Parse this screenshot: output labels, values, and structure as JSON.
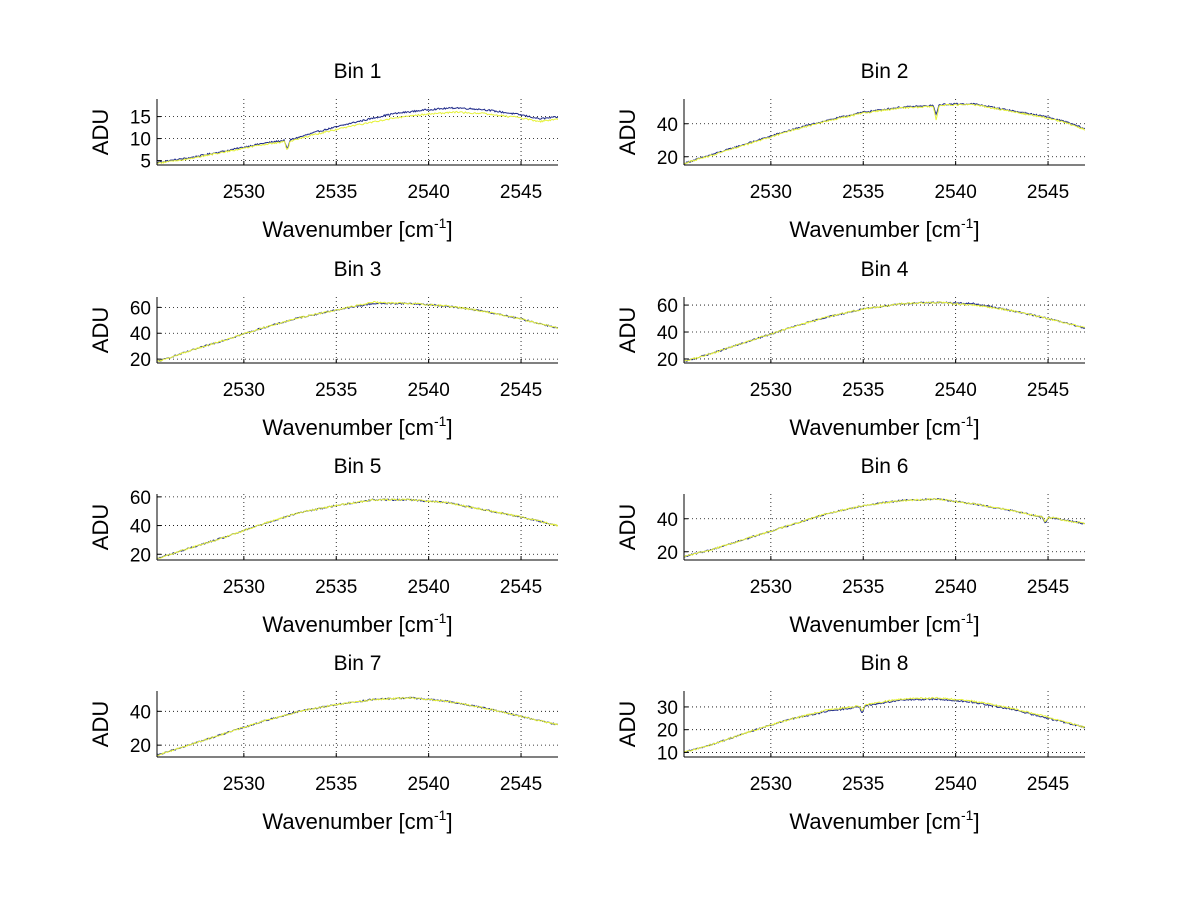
{
  "chart_data": [
    {
      "type": "line",
      "title": "Bin 1",
      "xlabel": "Wavenumber [cm",
      "xlabel_sup": "-1",
      "xlabel_end": "]",
      "ylabel": "ADU",
      "xlim": [
        2525.3,
        2547.0
      ],
      "ylim": [
        4,
        19
      ],
      "xticks": [
        2530,
        2535,
        2540,
        2545
      ],
      "yticks": [
        5,
        10,
        15
      ],
      "grid": true,
      "series": [
        {
          "color": "#1f2a8a",
          "points": [
            [
              2525.3,
              4.6
            ],
            [
              2527,
              5.6
            ],
            [
              2529,
              7.2
            ],
            [
              2531,
              8.9
            ],
            [
              2532.2,
              9.6
            ],
            [
              2532.35,
              7.4
            ],
            [
              2532.5,
              9.7
            ],
            [
              2534,
              11.6
            ],
            [
              2536,
              13.7
            ],
            [
              2538,
              15.6
            ],
            [
              2540,
              16.6
            ],
            [
              2541.5,
              17.0
            ],
            [
              2543,
              16.6
            ],
            [
              2545,
              15.4
            ],
            [
              2546,
              14.5
            ],
            [
              2547,
              14.9
            ]
          ]
        },
        {
          "color": "#e6f23c",
          "points": [
            [
              2525.3,
              4.4
            ],
            [
              2527,
              5.4
            ],
            [
              2529,
              7.0
            ],
            [
              2531,
              8.6
            ],
            [
              2532.2,
              9.3
            ],
            [
              2532.35,
              7.2
            ],
            [
              2532.5,
              9.4
            ],
            [
              2534,
              11.1
            ],
            [
              2536,
              13.0
            ],
            [
              2538,
              14.6
            ],
            [
              2540,
              15.6
            ],
            [
              2541.5,
              16.0
            ],
            [
              2543,
              15.7
            ],
            [
              2545,
              14.7
            ],
            [
              2546,
              13.9
            ],
            [
              2547,
              14.4
            ]
          ]
        }
      ]
    },
    {
      "type": "line",
      "title": "Bin 2",
      "xlabel": "Wavenumber [cm",
      "xlabel_sup": "-1",
      "xlabel_end": "]",
      "ylabel": "ADU",
      "xlim": [
        2525.3,
        2547.0
      ],
      "ylim": [
        15,
        55
      ],
      "xticks": [
        2530,
        2535,
        2540,
        2545
      ],
      "yticks": [
        20,
        40
      ],
      "grid": true,
      "series": [
        {
          "color": "#1f2a8a",
          "points": [
            [
              2525.3,
              16
            ],
            [
              2527,
              22
            ],
            [
              2529,
              29
            ],
            [
              2531,
              36
            ],
            [
              2533,
              42
            ],
            [
              2535,
              47
            ],
            [
              2537,
              50
            ],
            [
              2538.8,
              51
            ],
            [
              2538.95,
              45
            ],
            [
              2539.1,
              51.5
            ],
            [
              2540,
              52
            ],
            [
              2541,
              52
            ],
            [
              2543,
              48
            ],
            [
              2545,
              44
            ],
            [
              2546,
              41
            ],
            [
              2547,
              37
            ]
          ]
        },
        {
          "color": "#e6f23c",
          "points": [
            [
              2525.3,
              16
            ],
            [
              2527,
              21.5
            ],
            [
              2529,
              28.5
            ],
            [
              2531,
              35.5
            ],
            [
              2533,
              41.5
            ],
            [
              2535,
              46.5
            ],
            [
              2537,
              49.5
            ],
            [
              2538.8,
              50.5
            ],
            [
              2538.95,
              42
            ],
            [
              2539.1,
              51
            ],
            [
              2540,
              51.5
            ],
            [
              2541,
              51.5
            ],
            [
              2543,
              47.5
            ],
            [
              2545,
              43.5
            ],
            [
              2546,
              40.5
            ],
            [
              2547,
              36.5
            ]
          ]
        }
      ]
    },
    {
      "type": "line",
      "title": "Bin 3",
      "xlabel": "Wavenumber [cm",
      "xlabel_sup": "-1",
      "xlabel_end": "]",
      "ylabel": "ADU",
      "xlim": [
        2525.3,
        2547.0
      ],
      "ylim": [
        17,
        68
      ],
      "xticks": [
        2530,
        2535,
        2540,
        2545
      ],
      "yticks": [
        20,
        40,
        60
      ],
      "grid": true,
      "series": [
        {
          "color": "#1f2a8a",
          "points": [
            [
              2525.3,
              18
            ],
            [
              2527,
              26
            ],
            [
              2529,
              35
            ],
            [
              2531,
              44
            ],
            [
              2533,
              52
            ],
            [
              2535,
              58
            ],
            [
              2537,
              63
            ],
            [
              2539,
              63
            ],
            [
              2541,
              61
            ],
            [
              2543,
              57
            ],
            [
              2545,
              51
            ],
            [
              2547,
              44
            ]
          ]
        },
        {
          "color": "#e6f23c",
          "points": [
            [
              2525.3,
              18
            ],
            [
              2527,
              26
            ],
            [
              2529,
              35
            ],
            [
              2531,
              44
            ],
            [
              2533,
              52
            ],
            [
              2535,
              58
            ],
            [
              2537,
              64
            ],
            [
              2539,
              63
            ],
            [
              2541,
              61
            ],
            [
              2543,
              57
            ],
            [
              2545,
              51
            ],
            [
              2547,
              44
            ]
          ]
        }
      ]
    },
    {
      "type": "line",
      "title": "Bin 4",
      "xlabel": "Wavenumber [cm",
      "xlabel_sup": "-1",
      "xlabel_end": "]",
      "ylabel": "ADU",
      "xlim": [
        2525.3,
        2547.0
      ],
      "ylim": [
        17,
        66
      ],
      "xticks": [
        2530,
        2535,
        2540,
        2545
      ],
      "yticks": [
        20,
        40,
        60
      ],
      "grid": true,
      "series": [
        {
          "color": "#1f2a8a",
          "points": [
            [
              2525.3,
              18
            ],
            [
              2527,
              25
            ],
            [
              2529,
              34
            ],
            [
              2531,
              43
            ],
            [
              2533,
              51
            ],
            [
              2535,
              57
            ],
            [
              2537,
              61
            ],
            [
              2539,
              62
            ],
            [
              2541,
              61
            ],
            [
              2543,
              56
            ],
            [
              2545,
              50
            ],
            [
              2547,
              43
            ]
          ]
        },
        {
          "color": "#e6f23c",
          "points": [
            [
              2525.3,
              18
            ],
            [
              2527,
              25
            ],
            [
              2529,
              34
            ],
            [
              2531,
              43
            ],
            [
              2533,
              51
            ],
            [
              2535,
              57
            ],
            [
              2537,
              61
            ],
            [
              2539,
              62
            ],
            [
              2541,
              60
            ],
            [
              2543,
              56
            ],
            [
              2545,
              50
            ],
            [
              2547,
              43
            ]
          ]
        }
      ]
    },
    {
      "type": "line",
      "title": "Bin 5",
      "xlabel": "Wavenumber [cm",
      "xlabel_sup": "-1",
      "xlabel_end": "]",
      "ylabel": "ADU",
      "xlim": [
        2525.3,
        2547.0
      ],
      "ylim": [
        16,
        62
      ],
      "xticks": [
        2530,
        2535,
        2540,
        2545
      ],
      "yticks": [
        20,
        40,
        60
      ],
      "grid": true,
      "series": [
        {
          "color": "#1f2a8a",
          "points": [
            [
              2525.3,
              17
            ],
            [
              2527,
              24
            ],
            [
              2529,
              32
            ],
            [
              2531,
              41
            ],
            [
              2533,
              49
            ],
            [
              2535,
              54
            ],
            [
              2537,
              58
            ],
            [
              2539,
              58
            ],
            [
              2541,
              56
            ],
            [
              2543,
              51
            ],
            [
              2545,
              46
            ],
            [
              2547,
              40
            ]
          ]
        },
        {
          "color": "#e6f23c",
          "points": [
            [
              2525.3,
              17
            ],
            [
              2527,
              24
            ],
            [
              2529,
              32
            ],
            [
              2531,
              41
            ],
            [
              2533,
              49
            ],
            [
              2535,
              54
            ],
            [
              2537,
              58
            ],
            [
              2539,
              58
            ],
            [
              2541,
              56
            ],
            [
              2543,
              51
            ],
            [
              2545,
              46
            ],
            [
              2547,
              40
            ]
          ]
        }
      ]
    },
    {
      "type": "line",
      "title": "Bin 6",
      "xlabel": "Wavenumber [cm",
      "xlabel_sup": "-1",
      "xlabel_end": "]",
      "ylabel": "ADU",
      "xlim": [
        2525.3,
        2547.0
      ],
      "ylim": [
        15,
        55
      ],
      "xticks": [
        2530,
        2535,
        2540,
        2545
      ],
      "yticks": [
        20,
        40
      ],
      "grid": true,
      "series": [
        {
          "color": "#1f2a8a",
          "points": [
            [
              2525.3,
              17
            ],
            [
              2527,
              22
            ],
            [
              2529,
              29
            ],
            [
              2531,
              36
            ],
            [
              2533,
              43
            ],
            [
              2535,
              48
            ],
            [
              2537,
              51
            ],
            [
              2539,
              52
            ],
            [
              2541,
              49
            ],
            [
              2543,
              45
            ],
            [
              2544.7,
              41
            ],
            [
              2544.85,
              37
            ],
            [
              2545,
              41
            ],
            [
              2547,
              37
            ]
          ]
        },
        {
          "color": "#e6f23c",
          "points": [
            [
              2525.3,
              17
            ],
            [
              2527,
              22
            ],
            [
              2529,
              29
            ],
            [
              2531,
              36
            ],
            [
              2533,
              43
            ],
            [
              2535,
              48
            ],
            [
              2537,
              51
            ],
            [
              2539,
              52
            ],
            [
              2541,
              49
            ],
            [
              2543,
              45
            ],
            [
              2544.7,
              41
            ],
            [
              2544.85,
              38
            ],
            [
              2545,
              41
            ],
            [
              2547,
              37
            ]
          ]
        }
      ]
    },
    {
      "type": "line",
      "title": "Bin 7",
      "xlabel": "Wavenumber [cm",
      "xlabel_sup": "-1",
      "xlabel_end": "]",
      "ylabel": "ADU",
      "xlim": [
        2525.3,
        2547.0
      ],
      "ylim": [
        13,
        52
      ],
      "xticks": [
        2530,
        2535,
        2540,
        2545
      ],
      "yticks": [
        20,
        40
      ],
      "grid": true,
      "series": [
        {
          "color": "#1f2a8a",
          "points": [
            [
              2525.3,
              14
            ],
            [
              2527,
              20
            ],
            [
              2529,
              27
            ],
            [
              2531,
              34
            ],
            [
              2533,
              40
            ],
            [
              2535,
              44
            ],
            [
              2537,
              47
            ],
            [
              2539,
              48
            ],
            [
              2541,
              46
            ],
            [
              2543,
              42
            ],
            [
              2545,
              37
            ],
            [
              2547,
              32
            ]
          ]
        },
        {
          "color": "#e6f23c",
          "points": [
            [
              2525.3,
              14
            ],
            [
              2527,
              20
            ],
            [
              2529,
              27
            ],
            [
              2531,
              34
            ],
            [
              2533,
              40
            ],
            [
              2535,
              44
            ],
            [
              2537,
              47
            ],
            [
              2539,
              48
            ],
            [
              2541,
              46
            ],
            [
              2543,
              42
            ],
            [
              2545,
              37
            ],
            [
              2547,
              32
            ]
          ]
        }
      ]
    },
    {
      "type": "line",
      "title": "Bin 8",
      "xlabel": "Wavenumber [cm",
      "xlabel_sup": "-1",
      "xlabel_end": "]",
      "ylabel": "ADU",
      "xlim": [
        2525.3,
        2547.0
      ],
      "ylim": [
        8,
        37
      ],
      "xticks": [
        2530,
        2535,
        2540,
        2545
      ],
      "yticks": [
        10,
        20,
        30
      ],
      "grid": true,
      "series": [
        {
          "color": "#1f2a8a",
          "points": [
            [
              2525.3,
              10
            ],
            [
              2527,
              14
            ],
            [
              2529,
              19.5
            ],
            [
              2531,
              24.5
            ],
            [
              2533,
              28
            ],
            [
              2534.8,
              30
            ],
            [
              2534.95,
              27
            ],
            [
              2535.1,
              30.5
            ],
            [
              2537,
              33
            ],
            [
              2539,
              33.5
            ],
            [
              2541,
              32
            ],
            [
              2543,
              29
            ],
            [
              2545,
              25
            ],
            [
              2547,
              21
            ]
          ]
        },
        {
          "color": "#e6f23c",
          "points": [
            [
              2525.3,
              10
            ],
            [
              2527,
              14
            ],
            [
              2529,
              19.5
            ],
            [
              2531,
              24.5
            ],
            [
              2533,
              28.5
            ],
            [
              2534.8,
              30.5
            ],
            [
              2534.95,
              28
            ],
            [
              2535.1,
              31
            ],
            [
              2537,
              33.5
            ],
            [
              2539,
              34
            ],
            [
              2541,
              32.5
            ],
            [
              2543,
              29.5
            ],
            [
              2545,
              25.5
            ],
            [
              2547,
              21
            ]
          ]
        }
      ]
    }
  ]
}
